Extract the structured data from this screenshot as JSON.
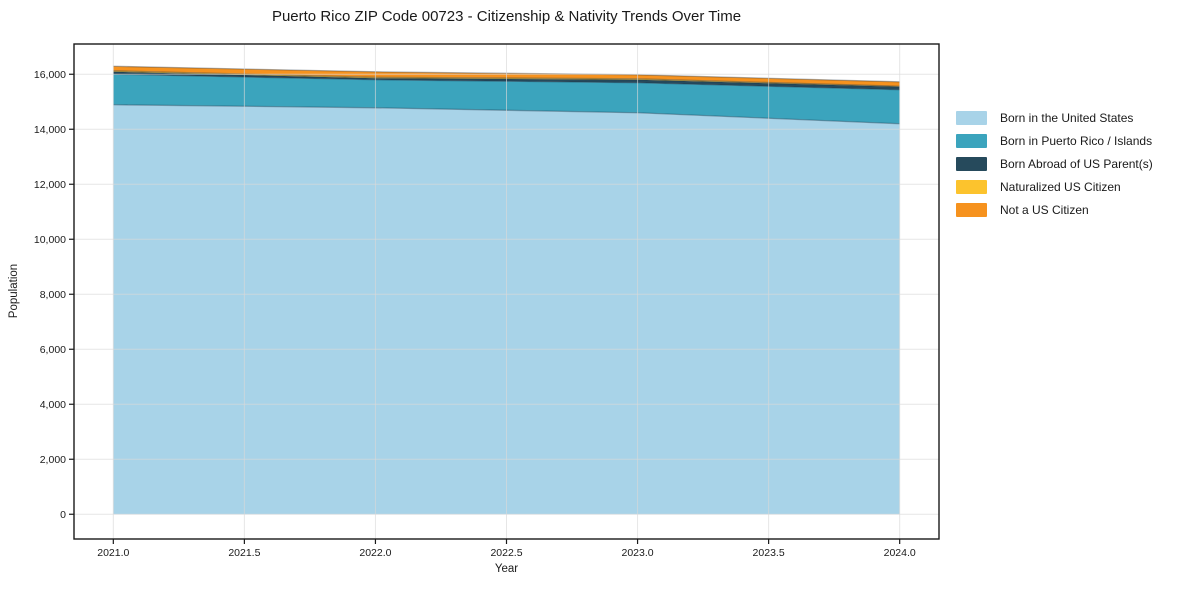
{
  "chart_data": {
    "type": "area",
    "stacked": true,
    "title": "Puerto Rico ZIP Code 00723 - Citizenship & Nativity Trends Over Time",
    "xlabel": "Year",
    "ylabel": "Population",
    "x": [
      2021,
      2022,
      2023,
      2024
    ],
    "series": [
      {
        "name": "Born in the United States",
        "color": "#a8d3e8",
        "values": [
          14890,
          14780,
          14600,
          14200
        ]
      },
      {
        "name": "Born in Puerto Rico / Islands",
        "color": "#3ba4bd",
        "values": [
          1110,
          1020,
          1090,
          1235
        ]
      },
      {
        "name": "Born Abroad of US Parent(s)",
        "color": "#264a5c",
        "values": [
          90,
          55,
          110,
          110
        ]
      },
      {
        "name": "Naturalized US Citizen",
        "color": "#fcc32d",
        "values": [
          35,
          35,
          35,
          20
        ]
      },
      {
        "name": "Not a US Citizen",
        "color": "#f6921e",
        "values": [
          165,
          200,
          145,
          160
        ]
      }
    ],
    "xlim": [
      2020.85,
      2024.15
    ],
    "ylim": [
      -900,
      17100
    ],
    "grid": true,
    "legend_position": "right",
    "xticks": [
      {
        "value": 2021.0,
        "label": "2021.0"
      },
      {
        "value": 2021.5,
        "label": "2021.5"
      },
      {
        "value": 2022.0,
        "label": "2022.0"
      },
      {
        "value": 2022.5,
        "label": "2022.5"
      },
      {
        "value": 2023.0,
        "label": "2023.0"
      },
      {
        "value": 2023.5,
        "label": "2023.5"
      },
      {
        "value": 2024.0,
        "label": "2024.0"
      }
    ],
    "yticks": [
      {
        "value": 0,
        "label": "0"
      },
      {
        "value": 2000,
        "label": "2,000"
      },
      {
        "value": 4000,
        "label": "4,000"
      },
      {
        "value": 6000,
        "label": "6,000"
      },
      {
        "value": 8000,
        "label": "8,000"
      },
      {
        "value": 10000,
        "label": "10,000"
      },
      {
        "value": 12000,
        "label": "12,000"
      },
      {
        "value": 14000,
        "label": "14,000"
      },
      {
        "value": 16000,
        "label": "16,000"
      }
    ]
  }
}
